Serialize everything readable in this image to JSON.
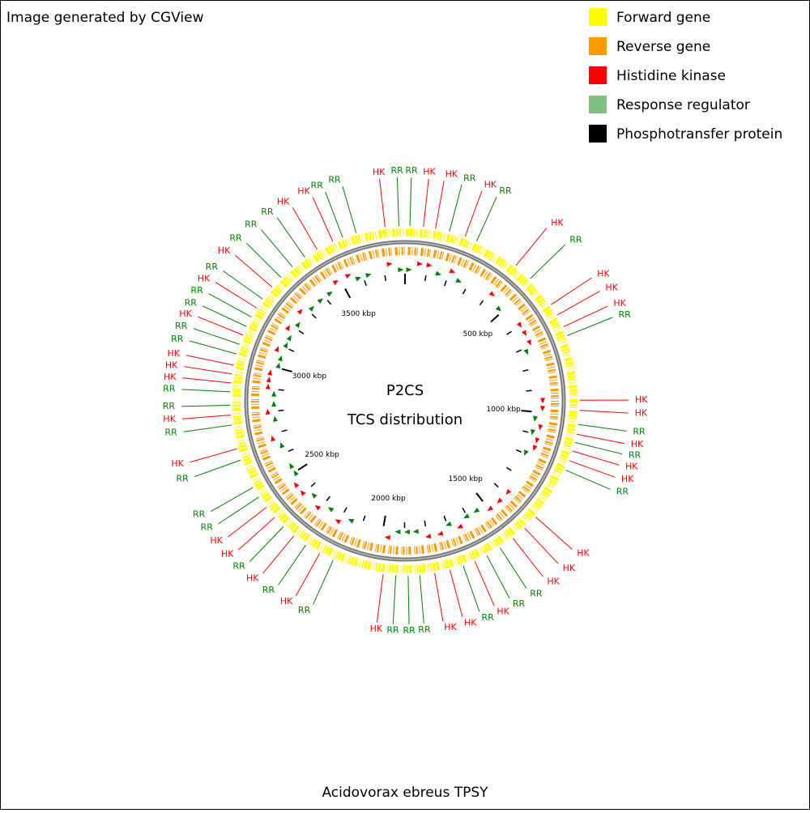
{
  "header": "Image generated by CGView",
  "legend": [
    {
      "label": "Forward gene",
      "color": "#ffff00"
    },
    {
      "label": "Reverse gene",
      "color": "#ff9900"
    },
    {
      "label": "Histidine kinase",
      "color": "#ff0000"
    },
    {
      "label": "Response regulator",
      "color": "#80c080"
    },
    {
      "label": "Phosphotransfer protein",
      "color": "#000000"
    }
  ],
  "map": {
    "title": "P2CS",
    "subtitle": "TCS distribution",
    "range_kbp": [
      0,
      3796
    ],
    "ticks": [
      0,
      100,
      200,
      300,
      400,
      500,
      600,
      700,
      800,
      900,
      1000,
      1100,
      1200,
      1300,
      1400,
      1500,
      1600,
      1700,
      1800,
      1900,
      2000,
      2100,
      2200,
      2300,
      2400,
      2500,
      2600,
      2700,
      2800,
      2900,
      3000,
      3100,
      3200,
      3300,
      3400,
      3500,
      3600,
      3700
    ],
    "tick_labels": [
      {
        "value": 500,
        "label": "500 kbp"
      },
      {
        "value": 1000,
        "label": "1000 kbp"
      },
      {
        "value": 1500,
        "label": "1500 kbp"
      },
      {
        "value": 2000,
        "label": "2000 kbp"
      },
      {
        "value": 2500,
        "label": "2500 kbp"
      },
      {
        "value": 3000,
        "label": "3000 kbp"
      },
      {
        "value": 3500,
        "label": "3500 kbp"
      }
    ],
    "colors": {
      "HK": "#ff0000",
      "RR": "#008000"
    },
    "features": [
      {
        "label": "RR",
        "position": 17
      },
      {
        "label": "HK",
        "position": 64
      },
      {
        "label": "HK",
        "position": 106
      },
      {
        "label": "RR",
        "position": 155
      },
      {
        "label": "HK",
        "position": 212
      },
      {
        "label": "RR",
        "position": 255
      },
      {
        "label": "HK",
        "position": 415
      },
      {
        "label": "RR",
        "position": 482
      },
      {
        "label": "HK",
        "position": 597
      },
      {
        "label": "HK",
        "position": 639
      },
      {
        "label": "HK",
        "position": 685
      },
      {
        "label": "RR",
        "position": 718
      },
      {
        "label": "HK",
        "position": 947
      },
      {
        "label": "HK",
        "position": 982
      },
      {
        "label": "RR",
        "position": 1031
      },
      {
        "label": "HK",
        "position": 1065
      },
      {
        "label": "RR",
        "position": 1094
      },
      {
        "label": "HK",
        "position": 1125
      },
      {
        "label": "HK",
        "position": 1160
      },
      {
        "label": "RR",
        "position": 1195
      },
      {
        "label": "HK",
        "position": 1388
      },
      {
        "label": "HK",
        "position": 1442
      },
      {
        "label": "HK",
        "position": 1496
      },
      {
        "label": "RR",
        "position": 1551
      },
      {
        "label": "RR",
        "position": 1604
      },
      {
        "label": "HK",
        "position": 1650
      },
      {
        "label": "RR",
        "position": 1693
      },
      {
        "label": "HK",
        "position": 1741
      },
      {
        "label": "HK",
        "position": 1795
      },
      {
        "label": "RR",
        "position": 1847
      },
      {
        "label": "RR",
        "position": 1887
      },
      {
        "label": "RR",
        "position": 1930
      },
      {
        "label": "HK",
        "position": 1974
      },
      {
        "label": "RR",
        "position": 2154
      },
      {
        "label": "HK",
        "position": 2206
      },
      {
        "label": "RR",
        "position": 2262
      },
      {
        "label": "HK",
        "position": 2314
      },
      {
        "label": "RR",
        "position": 2362
      },
      {
        "label": "HK",
        "position": 2406
      },
      {
        "label": "HK",
        "position": 2451
      },
      {
        "label": "RR",
        "position": 2495
      },
      {
        "label": "RR",
        "position": 2534
      },
      {
        "label": "RR",
        "position": 2638
      },
      {
        "label": "HK",
        "position": 2679
      },
      {
        "label": "RR",
        "position": 2763
      },
      {
        "label": "HK",
        "position": 2798
      },
      {
        "label": "RR",
        "position": 2832
      },
      {
        "label": "RR",
        "position": 2878
      },
      {
        "label": "HK",
        "position": 2909
      },
      {
        "label": "HK",
        "position": 2940
      },
      {
        "label": "HK",
        "position": 2971
      },
      {
        "label": "RR",
        "position": 3011
      },
      {
        "label": "RR",
        "position": 3046
      },
      {
        "label": "HK",
        "position": 3080
      },
      {
        "label": "RR",
        "position": 3112
      },
      {
        "label": "RR",
        "position": 3149
      },
      {
        "label": "HK",
        "position": 3185
      },
      {
        "label": "RR",
        "position": 3222
      },
      {
        "label": "HK",
        "position": 3275
      },
      {
        "label": "RR",
        "position": 3320
      },
      {
        "label": "RR",
        "position": 3374
      },
      {
        "label": "RR",
        "position": 3428
      },
      {
        "label": "HK",
        "position": 3478
      },
      {
        "label": "HK",
        "position": 3539
      },
      {
        "label": "RR",
        "position": 3576
      },
      {
        "label": "RR",
        "position": 3625
      },
      {
        "label": "HK",
        "position": 3727
      },
      {
        "label": "RR",
        "position": 3775
      }
    ]
  },
  "organism": "Acidovorax ebreus TPSY"
}
